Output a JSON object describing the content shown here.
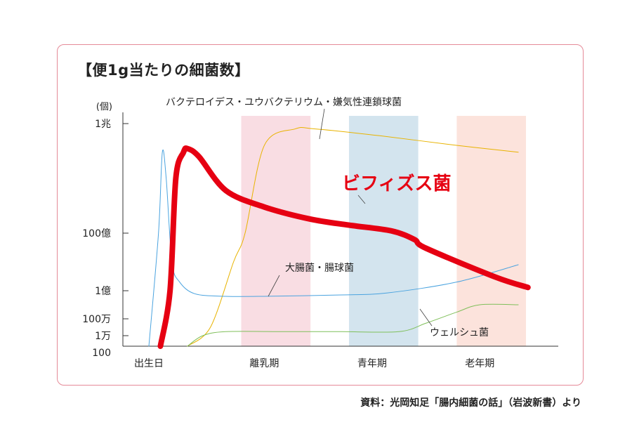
{
  "title": "【便1g当たりの細菌数】",
  "source": "資料：光岡知足「腸内細菌の話」（岩波新書）より",
  "chart_data": {
    "type": "line",
    "y_unit": "(個)",
    "y_scale": "log",
    "y_ticks": [
      {
        "label": "1兆",
        "value": 1000000000000.0
      },
      {
        "label": "100億",
        "value": 10000000000.0
      },
      {
        "label": "1億",
        "value": 100000000.0
      },
      {
        "label": "100万",
        "value": 1000000.0
      },
      {
        "label": "1万",
        "value": 10000.0
      },
      {
        "label": "100",
        "value": 100.0
      }
    ],
    "x_stages": [
      {
        "label": "出生日",
        "pos": 0.0
      },
      {
        "label": "離乳期",
        "pos": 0.3
      },
      {
        "label": "青年期",
        "pos": 0.58
      },
      {
        "label": "老年期",
        "pos": 0.86
      }
    ],
    "bands": [
      {
        "stage": "離乳期",
        "from": 0.24,
        "to": 0.42,
        "color": "#f9dde3"
      },
      {
        "stage": "青年期",
        "from": 0.52,
        "to": 0.7,
        "color": "#d3e4ee"
      },
      {
        "stage": "老年期",
        "from": 0.8,
        "to": 0.98,
        "color": "#fce3dc"
      }
    ],
    "series": [
      {
        "name": "ビフィズス菌",
        "color": "#e60012",
        "width": 8,
        "x": [
          0.03,
          0.055,
          0.07,
          0.09,
          0.1,
          0.13,
          0.2,
          0.3,
          0.42,
          0.52,
          0.63,
          0.69,
          0.72,
          0.9,
          0.985
        ],
        "y": [
          100.0,
          100000000.0,
          100000000000.0,
          300000000000.0,
          350000000000.0,
          250000000000.0,
          60000000000.0,
          30000000000.0,
          18000000000.0,
          14000000000.0,
          11000000000.0,
          6000000000.0,
          3000000000.0,
          300000000.0,
          130000000.0
        ]
      },
      {
        "name": "バクテロイデス・ユウバクテリウム・嫌気性連鎖球菌",
        "color": "#e8b300",
        "width": 1,
        "x": [
          0.1,
          0.16,
          0.22,
          0.25,
          0.3,
          0.38,
          0.43,
          0.6,
          0.8,
          0.96
        ],
        "y": [
          100.0,
          100000.0,
          1000000000.0,
          10000000000.0,
          400000000000.0,
          800000000000.0,
          800000000000.0,
          600000000000.0,
          400000000000.0,
          300000000000.0
        ]
      },
      {
        "name": "大腸菌・腸球菌",
        "color": "#4aa3df",
        "width": 1,
        "x": [
          0.0,
          0.025,
          0.035,
          0.045,
          0.06,
          0.08,
          0.12,
          0.2,
          0.3,
          0.5,
          0.62,
          0.8,
          0.96
        ],
        "y": [
          100.0,
          10000000000.0,
          300000000000.0,
          100000000000.0,
          1000000000.0,
          200000000.0,
          60000000.0,
          40000000.0,
          40000000.0,
          50000000.0,
          70000000.0,
          200000000.0,
          800000000.0
        ]
      },
      {
        "name": "ウェルシュ菌",
        "color": "#7fbf5a",
        "width": 1,
        "x": [
          0.1,
          0.14,
          0.2,
          0.35,
          0.5,
          0.65,
          0.72,
          0.8,
          0.86,
          0.96
        ],
        "y": [
          100.0,
          10000.0,
          30000.0,
          30000.0,
          30000.0,
          30000.0,
          300000.0,
          3000000.0,
          10000000.0,
          10000000.0
        ]
      }
    ],
    "annotations": [
      {
        "text": "バクテロイデス・ユウバクテリウム・嫌気性連鎖球菌",
        "series": 1
      },
      {
        "text": "ビフィズス菌",
        "series": 0
      },
      {
        "text": "大腸菌・腸球菌",
        "series": 2
      },
      {
        "text": "ウェルシュ菌",
        "series": 3
      }
    ]
  }
}
